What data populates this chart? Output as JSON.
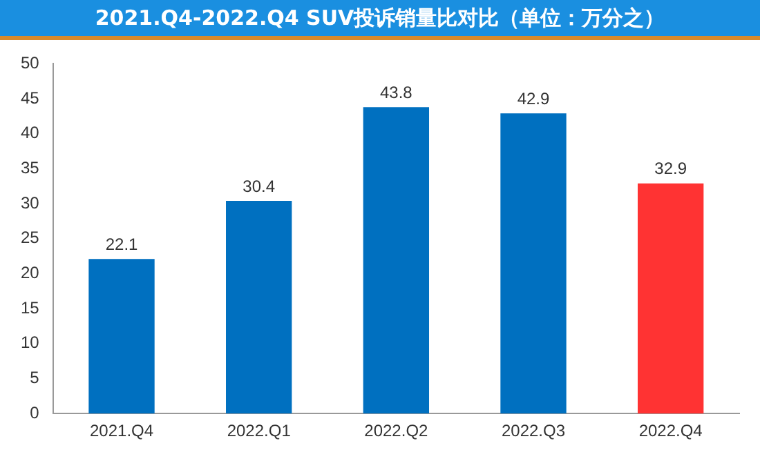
{
  "chart_data": {
    "type": "bar",
    "title": "2021.Q4-2022.Q4 SUV投诉销量比对比（单位：万分之）",
    "categories": [
      "2021.Q4",
      "2022.Q1",
      "2022.Q2",
      "2022.Q3",
      "2022.Q4"
    ],
    "values": [
      22.1,
      30.4,
      43.8,
      42.9,
      32.9
    ],
    "colors": [
      "#0070c0",
      "#0070c0",
      "#0070c0",
      "#0070c0",
      "#ff3333"
    ],
    "ylim": [
      0,
      50
    ],
    "yticks": [
      0,
      5,
      10,
      15,
      20,
      25,
      30,
      35,
      40,
      45,
      50
    ],
    "grid": false,
    "data_labels": true
  }
}
